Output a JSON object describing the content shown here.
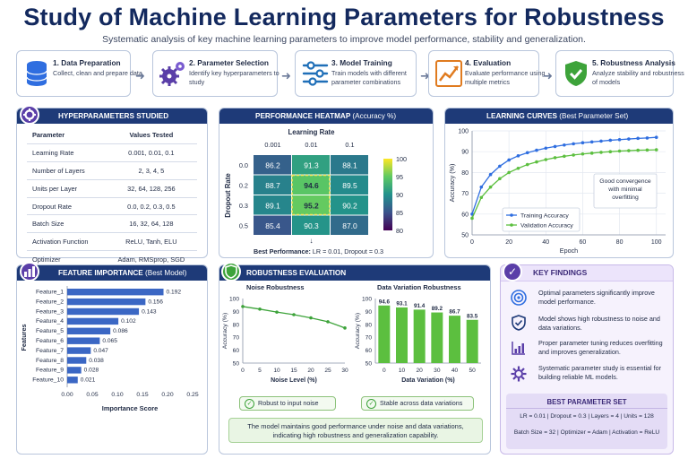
{
  "title": "Study of Machine Learning Parameters for Robustness",
  "subtitle": "Systematic analysis of key machine learning parameters to improve model performance, stability and generalization.",
  "steps": [
    {
      "title": "1. Data Preparation",
      "desc": "Collect, clean and prepare data",
      "icon": "database-icon"
    },
    {
      "title": "2. Parameter Selection",
      "desc": "Identify key hyperparameters to study",
      "icon": "gears-icon"
    },
    {
      "title": "3. Model Training",
      "desc": "Train models with different parameter combinations",
      "icon": "sliders-icon"
    },
    {
      "title": "4. Evaluation",
      "desc": "Evaluate performance using multiple metrics",
      "icon": "line-chart-icon"
    },
    {
      "title": "5. Robustness Analysis",
      "desc": "Analyze stability and robustness of models",
      "icon": "shield-check-icon"
    }
  ],
  "hyperparams": {
    "header": "HYPERPARAMETERS STUDIED",
    "col_param": "Parameter",
    "col_values": "Values Tested",
    "rows": [
      {
        "param": "Learning Rate",
        "values": "0.001, 0.01, 0.1"
      },
      {
        "param": "Number of Layers",
        "values": "2, 3, 4, 5"
      },
      {
        "param": "Units per Layer",
        "values": "32, 64, 128, 256"
      },
      {
        "param": "Dropout Rate",
        "values": "0.0, 0.2, 0.3, 0.5"
      },
      {
        "param": "Batch Size",
        "values": "16, 32, 64, 128"
      },
      {
        "param": "Activation Function",
        "values": "ReLU, Tanh, ELU"
      },
      {
        "param": "Optimizer",
        "values": "Adam, RMSprop, SGD"
      }
    ]
  },
  "heatmap": {
    "header": "PERFORMANCE HEATMAP",
    "header_sub": "(Accuracy %)",
    "col_title": "Learning Rate",
    "row_title": "Dropout Rate",
    "cols": [
      "0.001",
      "0.01",
      "0.1"
    ],
    "rows": [
      "0.0",
      "0.2",
      "0.3",
      "0.5"
    ],
    "values": [
      [
        "86.2",
        "91.3",
        "88.1"
      ],
      [
        "88.7",
        "94.6",
        "89.5"
      ],
      [
        "89.1",
        "95.2",
        "90.2"
      ],
      [
        "85.4",
        "90.3",
        "87.0"
      ]
    ],
    "colorbar_ticks": [
      "100",
      "95",
      "90",
      "85",
      "80"
    ],
    "best_label": "Best Performance:",
    "best_text": "LR = 0.01, Dropout = 0.3"
  },
  "learning_curves": {
    "header": "LEARNING CURVES",
    "header_sub": "(Best Parameter Set)",
    "ylabel": "Accuracy (%)",
    "xlabel": "Epoch",
    "yticks": [
      "100",
      "90",
      "80",
      "70",
      "60",
      "50"
    ],
    "xticks": [
      "0",
      "20",
      "40",
      "60",
      "80",
      "100"
    ],
    "note": "Good convergence with minimal overfitting",
    "legend": [
      "Training Accuracy",
      "Validation Accuracy"
    ]
  },
  "feature_importance": {
    "header": "FEATURE IMPORTANCE",
    "header_sub": "(Best Model)",
    "ylabel": "Features",
    "xlabel": "Importance Score",
    "xticks": [
      "0.00",
      "0.05",
      "0.10",
      "0.15",
      "0.20",
      "0.25"
    ],
    "features": [
      "Feature_1",
      "Feature_2",
      "Feature_3",
      "Feature_4",
      "Feature_5",
      "Feature_6",
      "Feature_7",
      "Feature_8",
      "Feature_9",
      "Feature_10"
    ],
    "value_labels": [
      "0.192",
      "0.156",
      "0.143",
      "0.102",
      "0.086",
      "0.065",
      "0.047",
      "0.038",
      "0.028",
      "0.021"
    ]
  },
  "robustness": {
    "header": "ROBUSTNESS EVALUATION",
    "noise_title": "Noise Robustness",
    "noise_ylabel": "Accuracy (%)",
    "noise_xlabel": "Noise Level (%)",
    "noise_yticks": [
      "100",
      "90",
      "80",
      "70",
      "60",
      "50"
    ],
    "noise_xticks": [
      "0",
      "5",
      "10",
      "15",
      "20",
      "25",
      "30"
    ],
    "data_title": "Data Variation Robustness",
    "data_ylabel": "Accuracy (%)",
    "data_xlabel": "Data Variation (%)",
    "data_yticks": [
      "100",
      "90",
      "80",
      "70",
      "60",
      "50"
    ],
    "data_xticks": [
      "0",
      "10",
      "20",
      "30",
      "40",
      "50"
    ],
    "data_labels": [
      "94.6",
      "93.1",
      "91.4",
      "89.2",
      "86.7",
      "83.5"
    ],
    "noise_pill": "Robust to input noise",
    "data_pill": "Stable across data variations",
    "note": "The model maintains good performance under noise and data variations, indicating high robustness and generalization capability."
  },
  "findings": {
    "header": "KEY FINDINGS",
    "items": [
      {
        "text": "Optimal parameters significantly improve model performance.",
        "icon": "target-icon"
      },
      {
        "text": "Model shows high robustness to noise and data variations.",
        "icon": "shield-check-icon"
      },
      {
        "text": "Proper parameter tuning reduces overfitting and improves generalization.",
        "icon": "bar-chart-icon"
      },
      {
        "text": "Systematic parameter study is essential for building reliable ML models.",
        "icon": "gear-icon"
      }
    ],
    "best_title": "BEST PARAMETER SET",
    "best_line1": "LR = 0.01   |   Dropout = 0.3   |   Layers = 4   |   Units = 128",
    "best_line2": "Batch Size = 32   |   Optimizer = Adam   |   Activation = ReLU"
  },
  "colors": {
    "navy": "#1e3a78",
    "blue": "#2f6ee0",
    "green": "#5cbf3f",
    "purple": "#5a3ea8",
    "bar_blue": "#3b67c4"
  },
  "chart_data": [
    {
      "type": "heatmap",
      "title": "PERFORMANCE HEATMAP (Accuracy %)",
      "xlabel": "Learning Rate",
      "ylabel": "Dropout Rate",
      "x": [
        "0.001",
        "0.01",
        "0.1"
      ],
      "y": [
        "0.0",
        "0.2",
        "0.3",
        "0.5"
      ],
      "z": [
        [
          86.2,
          91.3,
          88.1
        ],
        [
          88.7,
          94.6,
          89.5
        ],
        [
          89.1,
          95.2,
          90.2
        ],
        [
          85.4,
          90.3,
          87.0
        ]
      ],
      "colorbar_range": [
        80,
        100
      ]
    },
    {
      "type": "line",
      "title": "LEARNING CURVES (Best Parameter Set)",
      "xlabel": "Epoch",
      "ylabel": "Accuracy (%)",
      "xlim": [
        0,
        105
      ],
      "ylim": [
        50,
        100
      ],
      "x": [
        0,
        5,
        10,
        15,
        20,
        25,
        30,
        35,
        40,
        45,
        50,
        55,
        60,
        65,
        70,
        75,
        80,
        85,
        90,
        95,
        100
      ],
      "series": [
        {
          "name": "Training Accuracy",
          "values": [
            60,
            73,
            79,
            83,
            86,
            88,
            89.5,
            90.7,
            91.7,
            92.5,
            93.2,
            93.8,
            94.3,
            94.7,
            95.1,
            95.5,
            95.8,
            96.1,
            96.4,
            96.6,
            96.9
          ]
        },
        {
          "name": "Validation Accuracy",
          "values": [
            58,
            68,
            73,
            77,
            80,
            82,
            83.8,
            85.1,
            86.2,
            87.1,
            87.8,
            88.4,
            88.9,
            89.3,
            89.7,
            90.0,
            90.3,
            90.5,
            90.7,
            90.8,
            90.9
          ]
        }
      ],
      "legend": "bottom-left"
    },
    {
      "type": "bar",
      "orientation": "horizontal",
      "title": "FEATURE IMPORTANCE (Best Model)",
      "xlabel": "Importance Score",
      "ylabel": "Features",
      "categories": [
        "Feature_1",
        "Feature_2",
        "Feature_3",
        "Feature_4",
        "Feature_5",
        "Feature_6",
        "Feature_7",
        "Feature_8",
        "Feature_9",
        "Feature_10"
      ],
      "values": [
        0.192,
        0.156,
        0.143,
        0.102,
        0.086,
        0.065,
        0.047,
        0.038,
        0.028,
        0.021
      ],
      "xlim": [
        0,
        0.25
      ]
    },
    {
      "type": "line",
      "title": "Noise Robustness",
      "xlabel": "Noise Level (%)",
      "ylabel": "Accuracy (%)",
      "x": [
        0,
        5,
        10,
        15,
        20,
        25,
        30
      ],
      "values": [
        93.8,
        91.8,
        89.5,
        87.5,
        85.0,
        82.0,
        77.2
      ],
      "xlim": [
        0,
        30
      ],
      "ylim": [
        50,
        100
      ]
    },
    {
      "type": "bar",
      "title": "Data Variation Robustness",
      "xlabel": "Data Variation (%)",
      "ylabel": "Accuracy (%)",
      "categories": [
        "0",
        "10",
        "20",
        "30",
        "40",
        "50"
      ],
      "values": [
        94.6,
        93.1,
        91.4,
        89.2,
        86.7,
        83.5
      ],
      "ylim": [
        50,
        100
      ]
    }
  ]
}
